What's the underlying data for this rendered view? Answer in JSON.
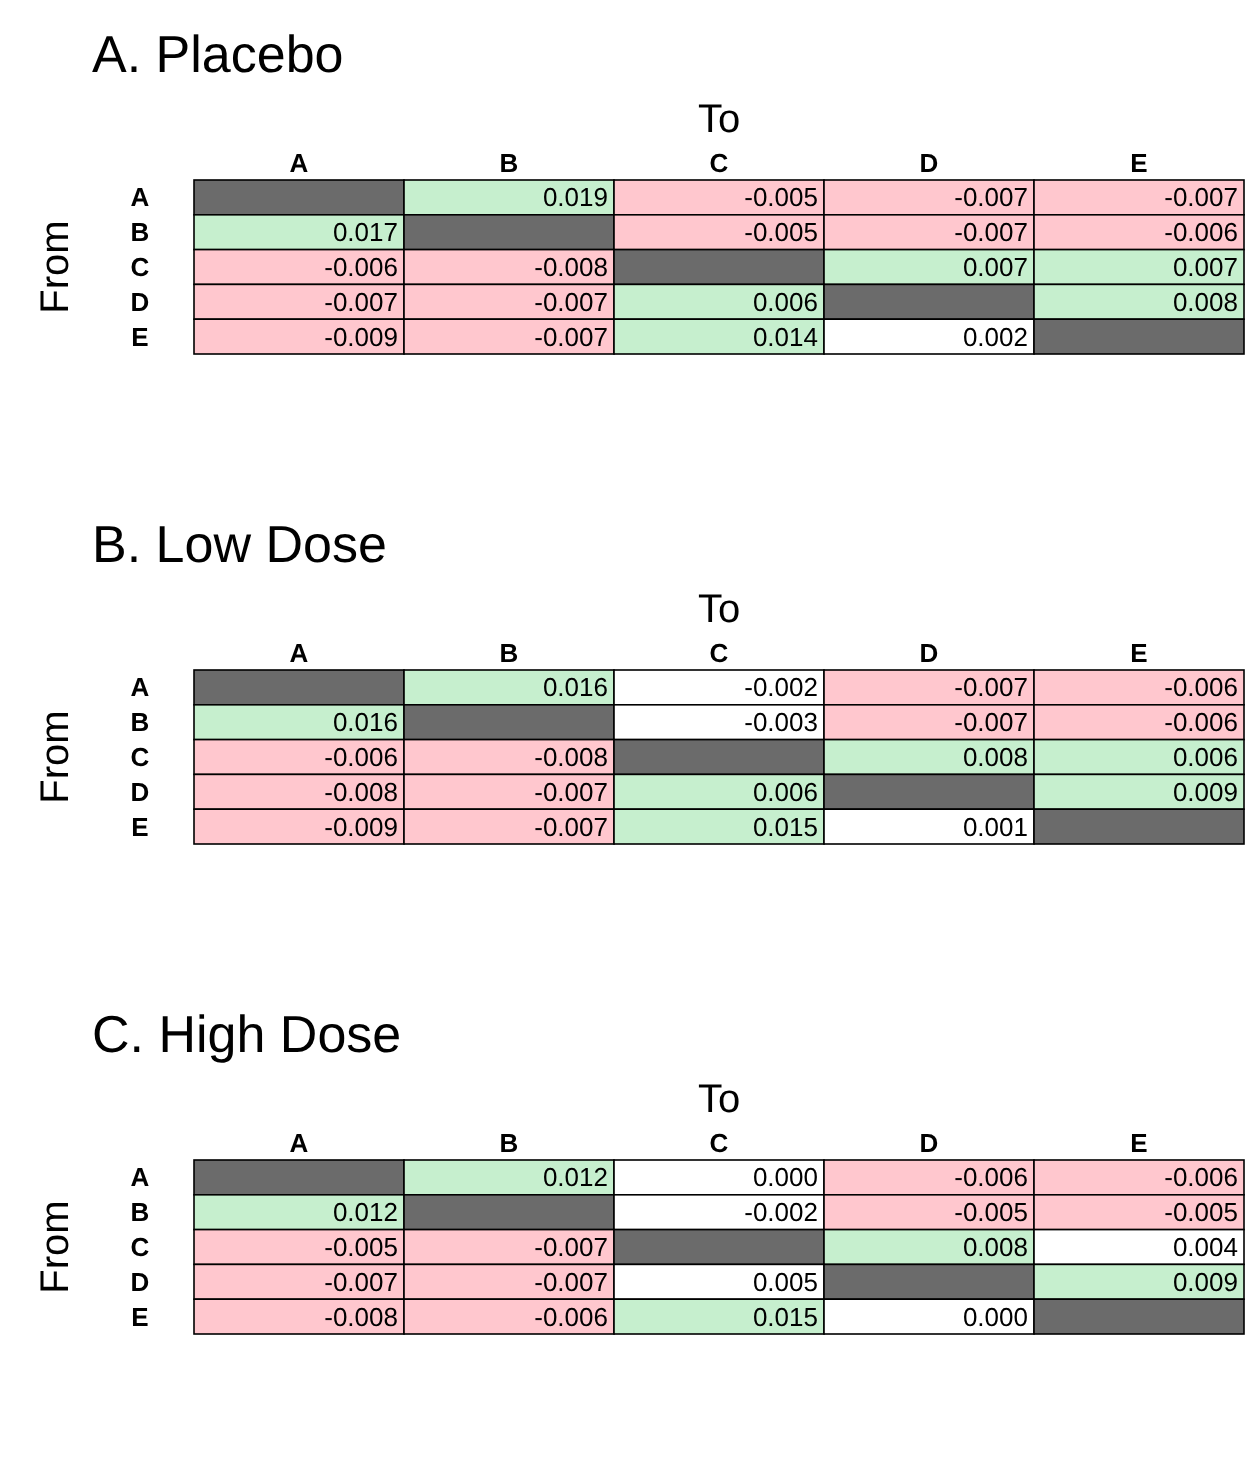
{
  "chart_data": [
    {
      "type": "heatmap",
      "data_labels": true,
      "title": "A. Placebo",
      "xlabel": "To",
      "ylabel": "From",
      "categories": [
        "A",
        "B",
        "C",
        "D",
        "E"
      ],
      "y_categories": [
        "A",
        "B",
        "C",
        "D",
        "E"
      ],
      "cells": [
        [
          null,
          0.019,
          -0.005,
          -0.007,
          -0.007
        ],
        [
          0.017,
          null,
          -0.005,
          -0.007,
          -0.006
        ],
        [
          -0.006,
          -0.008,
          null,
          0.007,
          0.007
        ],
        [
          -0.007,
          -0.007,
          0.006,
          null,
          0.008
        ],
        [
          -0.009,
          -0.007,
          0.014,
          0.002,
          null
        ]
      ],
      "colors": [
        [
          "#6b6b6b",
          "#c6efce",
          "#ffc7ce",
          "#ffc7ce",
          "#ffc7ce"
        ],
        [
          "#c6efce",
          "#6b6b6b",
          "#ffc7ce",
          "#ffc7ce",
          "#ffc7ce"
        ],
        [
          "#ffc7ce",
          "#ffc7ce",
          "#6b6b6b",
          "#c6efce",
          "#c6efce"
        ],
        [
          "#ffc7ce",
          "#ffc7ce",
          "#c6efce",
          "#6b6b6b",
          "#c6efce"
        ],
        [
          "#ffc7ce",
          "#ffc7ce",
          "#c6efce",
          "#ffffff",
          "#6b6b6b"
        ]
      ]
    },
    {
      "type": "heatmap",
      "data_labels": true,
      "title": "B. Low Dose",
      "xlabel": "To",
      "ylabel": "From",
      "categories": [
        "A",
        "B",
        "C",
        "D",
        "E"
      ],
      "y_categories": [
        "A",
        "B",
        "C",
        "D",
        "E"
      ],
      "cells": [
        [
          null,
          0.016,
          -0.002,
          -0.007,
          -0.006
        ],
        [
          0.016,
          null,
          -0.003,
          -0.007,
          -0.006
        ],
        [
          -0.006,
          -0.008,
          null,
          0.008,
          0.006
        ],
        [
          -0.008,
          -0.007,
          0.006,
          null,
          0.009
        ],
        [
          -0.009,
          -0.007,
          0.015,
          0.001,
          null
        ]
      ],
      "colors": [
        [
          "#6b6b6b",
          "#c6efce",
          "#ffffff",
          "#ffc7ce",
          "#ffc7ce"
        ],
        [
          "#c6efce",
          "#6b6b6b",
          "#ffffff",
          "#ffc7ce",
          "#ffc7ce"
        ],
        [
          "#ffc7ce",
          "#ffc7ce",
          "#6b6b6b",
          "#c6efce",
          "#c6efce"
        ],
        [
          "#ffc7ce",
          "#ffc7ce",
          "#c6efce",
          "#6b6b6b",
          "#c6efce"
        ],
        [
          "#ffc7ce",
          "#ffc7ce",
          "#c6efce",
          "#ffffff",
          "#6b6b6b"
        ]
      ]
    },
    {
      "type": "heatmap",
      "data_labels": true,
      "title": "C. High Dose",
      "xlabel": "To",
      "ylabel": "From",
      "categories": [
        "A",
        "B",
        "C",
        "D",
        "E"
      ],
      "y_categories": [
        "A",
        "B",
        "C",
        "D",
        "E"
      ],
      "cell_labels": [
        [
          null,
          "0.012",
          "0.000",
          "-0.006",
          "-0.006"
        ],
        [
          "0.012",
          null,
          "-0.002",
          "-0.005",
          "-0.005"
        ],
        [
          "-0.005",
          "-0.007",
          null,
          "0.008",
          "0.004"
        ],
        [
          "-0.007",
          "-0.007",
          "0.005",
          null,
          "0.009"
        ],
        [
          "-0.008",
          "-0.006",
          "0.015",
          "0.000",
          null
        ]
      ],
      "cells": [
        [
          null,
          0.012,
          0.0,
          -0.006,
          -0.006
        ],
        [
          0.012,
          null,
          -0.002,
          -0.005,
          -0.005
        ],
        [
          -0.005,
          -0.007,
          null,
          0.008,
          0.004
        ],
        [
          -0.007,
          -0.007,
          0.005,
          null,
          0.009
        ],
        [
          -0.008,
          -0.006,
          0.015,
          0.0,
          null
        ]
      ],
      "colors": [
        [
          "#6b6b6b",
          "#c6efce",
          "#ffffff",
          "#ffc7ce",
          "#ffc7ce"
        ],
        [
          "#c6efce",
          "#6b6b6b",
          "#ffffff",
          "#ffc7ce",
          "#ffc7ce"
        ],
        [
          "#ffc7ce",
          "#ffc7ce",
          "#6b6b6b",
          "#c6efce",
          "#ffffff"
        ],
        [
          "#ffc7ce",
          "#ffc7ce",
          "#ffffff",
          "#6b6b6b",
          "#c6efce"
        ],
        [
          "#ffc7ce",
          "#ffc7ce",
          "#c6efce",
          "#ffffff",
          "#6b6b6b"
        ]
      ]
    }
  ]
}
